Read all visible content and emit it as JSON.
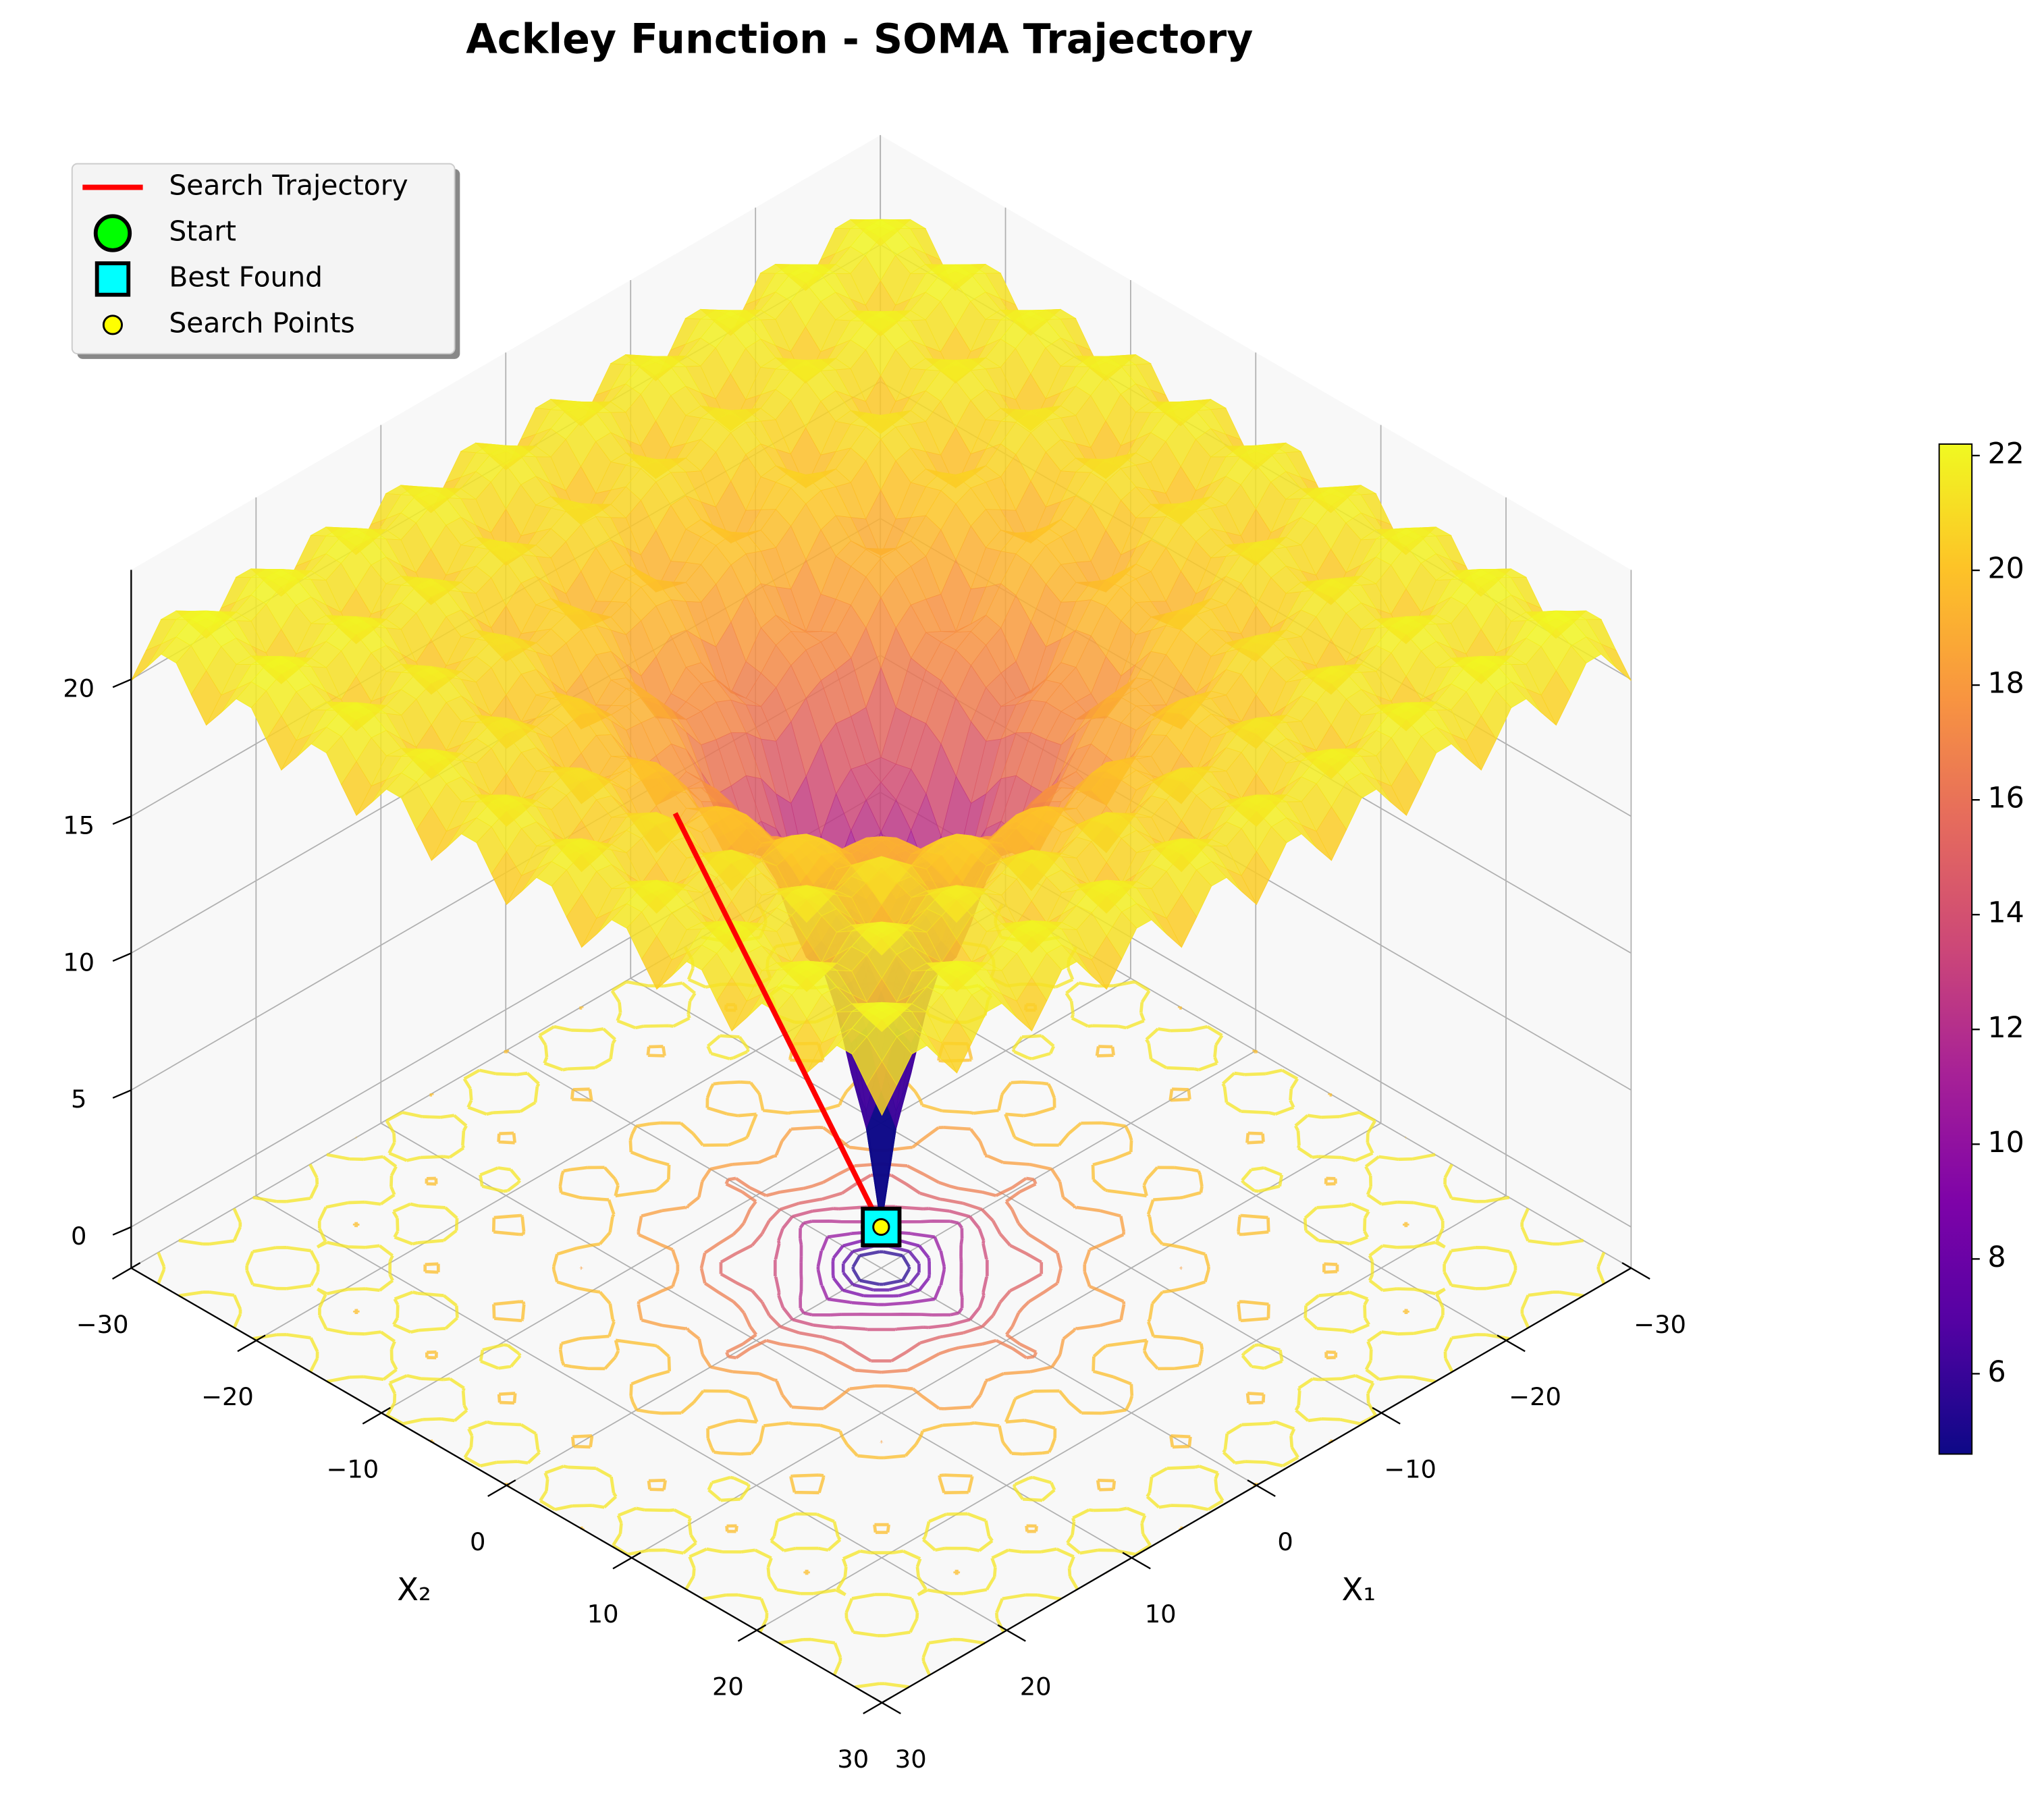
{
  "chart_data": {
    "type": "surface3d",
    "title": "Ackley Function - SOMA Trajectory",
    "x1_label": "X₁",
    "x2_label": "X₂",
    "x1lim": [
      -30,
      30
    ],
    "x2lim": [
      -30,
      30
    ],
    "zlim": [
      -1.5,
      24
    ],
    "x1ticks": [
      {
        "value": -30,
        "label": "−30"
      },
      {
        "value": -20,
        "label": "−20"
      },
      {
        "value": -10,
        "label": "−10"
      },
      0,
      10,
      20,
      30
    ],
    "x2ticks": [
      {
        "value": -30,
        "label": "−30"
      },
      {
        "value": -20,
        "label": "−20"
      },
      {
        "value": -10,
        "label": "−10"
      },
      0,
      10,
      20,
      30
    ],
    "zticks": [
      0,
      5,
      10,
      15,
      20
    ],
    "colormap": "plasma",
    "colorbar": {
      "lim": [
        4.6,
        22.2
      ],
      "ticks": [
        6,
        8,
        10,
        12,
        14,
        16,
        18,
        20,
        22
      ]
    },
    "grid": true,
    "legend": "upper left",
    "series": [
      {
        "name": "Search Trajectory",
        "kind": "line",
        "color": "#ff0000",
        "x1": [
          17.5,
          0
        ],
        "x2": [
          1.0,
          0
        ],
        "z": [
          20,
          0
        ]
      },
      {
        "name": "Start",
        "kind": "circle",
        "color": "#00ff00",
        "x1": [
          0
        ],
        "x2": [
          0
        ],
        "z": [
          0
        ]
      },
      {
        "name": "Best Found",
        "kind": "square",
        "color": "#00ffff",
        "x1": [
          0
        ],
        "x2": [
          0
        ],
        "z": [
          0
        ]
      },
      {
        "name": "Search Points",
        "kind": "dot",
        "color": "#ffff00",
        "x1": [
          0
        ],
        "x2": [
          0
        ],
        "z": [
          0
        ]
      }
    ]
  }
}
